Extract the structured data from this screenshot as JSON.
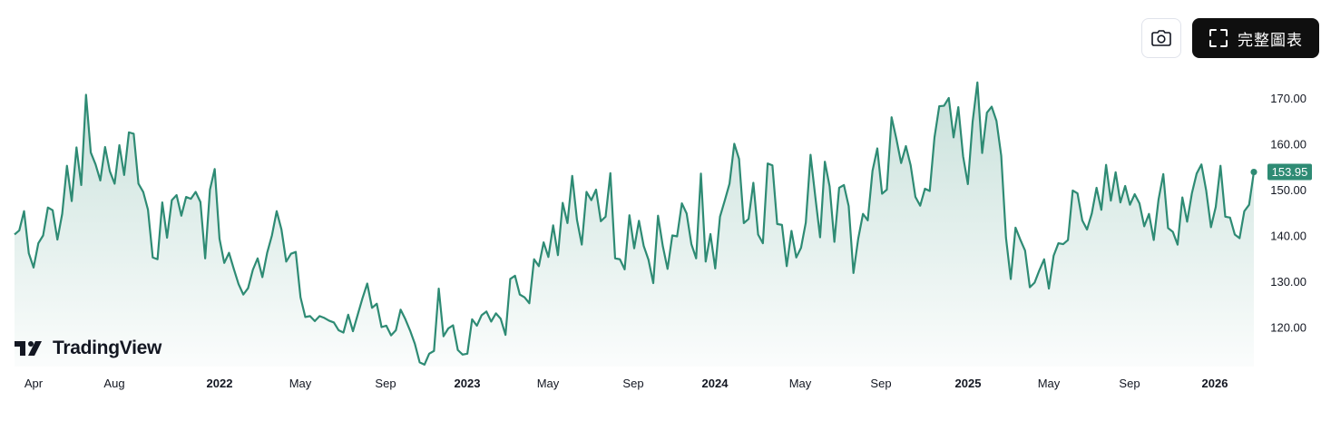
{
  "toolbar": {
    "camera_icon": "camera-icon",
    "fullscreen_icon": "fullscreen-corners-icon",
    "full_chart_label": "完整圖表"
  },
  "brand": {
    "name": "TradingView",
    "logo_icon": "tradingview-logo-icon"
  },
  "chart_data": {
    "type": "area",
    "title": "",
    "xlabel": "",
    "ylabel": "",
    "ylim": [
      111,
      175
    ],
    "y_ticks": [
      {
        "value": 120,
        "label": "120.00"
      },
      {
        "value": 130,
        "label": "130.00"
      },
      {
        "value": 140,
        "label": "140.00"
      },
      {
        "value": 150,
        "label": "150.00"
      },
      {
        "value": 160,
        "label": "160.00"
      },
      {
        "value": 170,
        "label": "170.00"
      }
    ],
    "x_ticks": [
      {
        "label": "Apr",
        "year": false
      },
      {
        "label": "Aug",
        "year": false
      },
      {
        "label": "2022",
        "year": true
      },
      {
        "label": "May",
        "year": false
      },
      {
        "label": "Sep",
        "year": false
      },
      {
        "label": "2023",
        "year": true
      },
      {
        "label": "May",
        "year": false
      },
      {
        "label": "Sep",
        "year": false
      },
      {
        "label": "2024",
        "year": true
      },
      {
        "label": "May",
        "year": false
      },
      {
        "label": "Sep",
        "year": false
      },
      {
        "label": "2025",
        "year": true
      },
      {
        "label": "May",
        "year": false
      },
      {
        "label": "Sep",
        "year": false
      },
      {
        "label": "2026",
        "year": true
      }
    ],
    "last_value": 153.95,
    "last_value_label": "153.95",
    "line_color": "#2e8b74",
    "fill_color": "#2e8b74",
    "grid": false,
    "series": [
      {
        "values": [
          140.3,
          141.2,
          145.4,
          136.2,
          133.1,
          138.4,
          140.1,
          146.2,
          145.6,
          139.2,
          144.8,
          155.3,
          147.6,
          159.3,
          151.1,
          170.8,
          158.2,
          155.6,
          152.1,
          159.4,
          154.1,
          151.4,
          159.8,
          153.3,
          162.6,
          162.3,
          151.4,
          149.6,
          145.7,
          135.3,
          134.9,
          147.3,
          139.6,
          147.8,
          148.9,
          144.4,
          148.5,
          148.1,
          149.6,
          147.4,
          135.1,
          150.1,
          154.6,
          139.4,
          134.1,
          136.3,
          132.8,
          129.5,
          127.2,
          128.6,
          132.6,
          135.1,
          131.0,
          136.3,
          140.1,
          145.4,
          141.4,
          134.4,
          136.1,
          136.5,
          126.6,
          122.3,
          122.5,
          121.4,
          122.5,
          122.1,
          121.5,
          121.1,
          119.4,
          118.9,
          122.8,
          119.2,
          122.8,
          126.4,
          129.6,
          124.3,
          125.2,
          120.1,
          120.4,
          118.3,
          119.4,
          123.9,
          121.8,
          119.3,
          116.4,
          112.4,
          111.9,
          114.3,
          114.9,
          128.5,
          118.1,
          119.8,
          120.5,
          115.1,
          114.1,
          114.3,
          121.8,
          120.4,
          122.7,
          123.5,
          121.3,
          123.1,
          121.9,
          118.4,
          130.6,
          131.3,
          127.2,
          126.6,
          125.3,
          134.9,
          133.4,
          138.6,
          135.4,
          142.3,
          135.8,
          147.2,
          142.8,
          153.1,
          143.5,
          138.1,
          149.6,
          147.8,
          150.1,
          143.2,
          144.2,
          153.7,
          135.1,
          134.9,
          132.7,
          144.5,
          137.3,
          143.3,
          137.8,
          134.8,
          129.7,
          144.4,
          137.8,
          132.8,
          140.1,
          139.9,
          147.1,
          144.9,
          138.2,
          135.1,
          153.6,
          134.4,
          140.4,
          132.9,
          144.2,
          147.7,
          151.4,
          160.1,
          156.8,
          142.8,
          143.7,
          151.6,
          140.3,
          138.4,
          155.8,
          155.4,
          142.6,
          142.4,
          133.4,
          141.1,
          135.3,
          137.4,
          142.9,
          157.7,
          148.5,
          139.7,
          156.2,
          150.8,
          138.7,
          150.5,
          151.1,
          146.5,
          131.9,
          139.4,
          144.8,
          143.4,
          154.2,
          159.1,
          149.2,
          150.1,
          165.9,
          161.2,
          155.9,
          159.6,
          155.4,
          148.5,
          146.6,
          150.3,
          149.8,
          161.5,
          168.3,
          168.4,
          170.1,
          161.5,
          168.1,
          157.4,
          151.3,
          164.9,
          173.5,
          158.1,
          166.9,
          168.2,
          165.1,
          157.5,
          139.6,
          130.6,
          141.8,
          139.2,
          136.8,
          128.8,
          129.8,
          132.5,
          134.9,
          128.5,
          135.7,
          138.4,
          138.2,
          139.1,
          149.9,
          149.3,
          143.4,
          141.4,
          144.9,
          150.5,
          145.7,
          155.5,
          147.7,
          153.9,
          147.3,
          150.9,
          146.8,
          149.1,
          147.1,
          142.1,
          144.8,
          139.1,
          147.9,
          153.5,
          141.7,
          140.9,
          138.1,
          148.4,
          143.1,
          149.3,
          153.6,
          155.6,
          149.9,
          141.9,
          146.3,
          155.3,
          144.2,
          144.0,
          140.3,
          139.5,
          145.4,
          146.8,
          153.95
        ]
      }
    ]
  }
}
